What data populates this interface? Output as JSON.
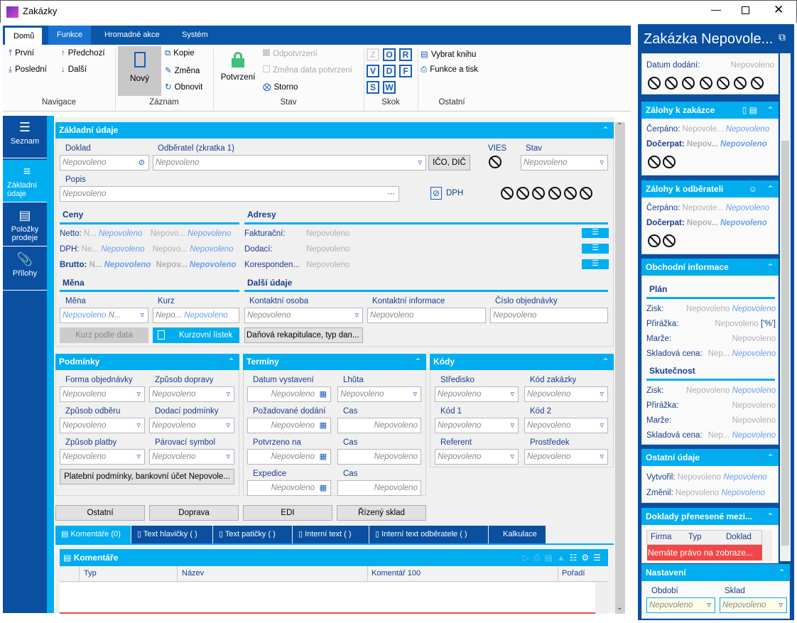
{
  "window": {
    "title": "Zakázky",
    "icon": "k2-logo-icon",
    "controls": [
      "minimize",
      "maximize",
      "close"
    ]
  },
  "ribbon": {
    "tabs": [
      "Domů",
      "Funkce",
      "Hromadné akce",
      "Systém"
    ],
    "active_tab": "Domů",
    "navigace": {
      "label": "Navigace",
      "first": "První",
      "prev": "Předchozí",
      "last": "Poslední",
      "next": "Další"
    },
    "zaznam": {
      "label": "Záznam",
      "new": "Nový",
      "copy": "Kopie",
      "change": "Změna",
      "refresh": "Obnovit"
    },
    "stav": {
      "label": "Stav",
      "confirm": "Potvrzení",
      "unconfirm": "Odpotvrzení",
      "change_date": "Změna data potvrzení",
      "storno": "Storno"
    },
    "skok": {
      "label": "Skok",
      "letters": [
        "Z",
        "O",
        "R",
        "V",
        "D",
        "F",
        "S",
        "W"
      ]
    },
    "ostatni": {
      "label": "Ostatní",
      "book": "Vybrat knihu",
      "print": "Funkce a tisk"
    }
  },
  "nav": [
    {
      "label": "Seznam"
    },
    {
      "label": "Základní údaje",
      "active": true
    },
    {
      "label": "Položky prodeje"
    },
    {
      "label": "Přílohy"
    }
  ],
  "zakladni": {
    "title": "Základní údaje",
    "doklad": {
      "label": "Doklad",
      "value": "Nepovoleno"
    },
    "odberatel": {
      "label": "Odběratel (zkratka 1)",
      "value": "Nepovoleno"
    },
    "ico_button": "IČO, DIČ",
    "vies": "VIES",
    "stav": {
      "label": "Stav",
      "value": "Nepovoleno"
    },
    "popis": {
      "label": "Popis",
      "value": "Nepovoleno"
    },
    "dph": "DPH",
    "ceny": {
      "title": "Ceny",
      "rows": [
        {
          "label": "Netto:",
          "a": "N...",
          "b": "Nepovoleno",
          "c": "Nepovo...",
          "d": "Nepovoleno"
        },
        {
          "label": "DPH:",
          "a": "Ne...",
          "b": "Nepovoleno",
          "c": "Nepovo...",
          "d": "Nepovoleno"
        },
        {
          "label": "Brutto:",
          "a": "N...",
          "b": "Nepovoleno",
          "c": "Nepov...",
          "d": "Nepovoleno"
        }
      ]
    },
    "adresy": {
      "title": "Adresy",
      "rows": [
        {
          "label": "Fakturační:",
          "value": "Nepovoleno"
        },
        {
          "label": "Dodací:",
          "value": "Nepovoleno"
        },
        {
          "label": "Koresponden...",
          "value": "Nepovoleno"
        }
      ]
    },
    "mena": {
      "title": "Měna",
      "mena_label": "Měna",
      "mena_value": "Nepovoleno",
      "mena_extra": "N...",
      "kurz_label": "Kurz",
      "kurz_a": "Nepo...",
      "kurz_b": "Nepovoleno",
      "kurz_podle_data": "Kurz podle data",
      "kurzovni_listek": "Kurzovní lístek"
    },
    "dalsi": {
      "title": "Další údaje",
      "kontaktni_osoba": {
        "label": "Kontaktní osoba",
        "value": "Nepovoleno"
      },
      "kontaktni_informace": {
        "label": "Kontaktní informace",
        "value": "Nepovoleno"
      },
      "cislo_objednavky": {
        "label": "Číslo objednávky",
        "value": "Nepovoleno"
      },
      "danova_button": "Daňová rekapitulace, typ dan..."
    }
  },
  "podminky": {
    "title": "Podmínky",
    "fields": [
      {
        "label": "Forma objednávky",
        "value": "Nepovoleno"
      },
      {
        "label": "Způsob dopravy",
        "value": "Nepovoleno"
      },
      {
        "label": "Způsob odběru",
        "value": "Nepovoleno"
      },
      {
        "label": "Dodací podmínky",
        "value": "Nepovoleno"
      },
      {
        "label": "Způsob platby",
        "value": "Nepovoleno"
      },
      {
        "label": "Párovací symbol",
        "value": "Nepovoleno"
      }
    ],
    "button": "Platební podmínky, bankovní účet Nepovole..."
  },
  "terminy": {
    "title": "Termíny",
    "fields": [
      {
        "label": "Datum vystavení",
        "value": "Nepovoleno"
      },
      {
        "label": "Lhůta",
        "value": "Nepovoleno"
      },
      {
        "label": "Požadované dodání",
        "value": "Nepovoleno"
      },
      {
        "label": "Čas",
        "value": "Nepovoleno"
      },
      {
        "label": "Potvrzeno na",
        "value": "Nepovoleno"
      },
      {
        "label": "Čas",
        "value": "Nepovoleno"
      },
      {
        "label": "Expedice",
        "value": "Nepovoleno"
      },
      {
        "label": "Čas",
        "value": "Nepovoleno"
      }
    ]
  },
  "kody": {
    "title": "Kódy",
    "fields": [
      {
        "label": "Středisko",
        "value": "Nepovoleno"
      },
      {
        "label": "Kód zakázky",
        "value": "Nepovoleno"
      },
      {
        "label": "Kód 1",
        "value": "Nepovoleno"
      },
      {
        "label": "Kód 2",
        "value": "Nepovoleno"
      },
      {
        "label": "Referent",
        "value": "Nepovoleno"
      },
      {
        "label": "Prostředek",
        "value": "Nepovoleno"
      }
    ]
  },
  "bottom_buttons": [
    "Ostatní",
    "Doprava",
    "EDI",
    "Řízený sklad"
  ],
  "bottom_tabs": [
    "Komentáře (0)",
    "Text hlavičky ( )",
    "Text patičky ( )",
    "Interní text ( )",
    "Interní text odběratele ( )",
    "Kalkulace"
  ],
  "komentare": {
    "title": "Komentáře",
    "columns": [
      "Typ",
      "Název",
      "Komentář 100",
      "Pořadí"
    ]
  },
  "right": {
    "title": "Zakázka Nepovole...",
    "datum_dodani": {
      "label": "Datum dodání:",
      "value": "Nepovoleno"
    },
    "zalohy_zakazka": {
      "title": "Zálohy k zakázce",
      "cerpano_label": "Čerpáno:",
      "cerpano_a": "Nepovole...",
      "cerpano_b": "Nepovoleno",
      "docerpat_label": "Dočerpat:",
      "docerpat_a": "Nepov...",
      "docerpat_b": "Nepovoleno"
    },
    "zalohy_odberatel": {
      "title": "Zálohy k odběrateli",
      "cerpano_label": "Čerpáno:",
      "cerpano_a": "Nepovole...",
      "cerpano_b": "Nepovoleno",
      "docerpat_label": "Dočerpat:",
      "docerpat_a": "Nepov...",
      "docerpat_b": "Nepovoleno"
    },
    "obchodni": {
      "title": "Obchodní informace",
      "plan": {
        "title": "Plán",
        "zisk": [
          "Zisk:",
          "Nepovoleno",
          "Nepovoleno"
        ],
        "prirazka": [
          "Přirážka:",
          "Nepovoleno",
          "['%']"
        ],
        "marze": [
          "Marže:",
          "Nepovoleno"
        ],
        "skladova": [
          "Skladová cena:",
          "Nep...",
          "Nepovoleno"
        ]
      },
      "skutecnost": {
        "title": "Skutečnost",
        "zisk": [
          "Zisk:",
          "Nepovoleno",
          "Nepovoleno"
        ],
        "prirazka": [
          "Přirážka:",
          "Nepovoleno"
        ],
        "marze": [
          "Marže:",
          "Nepovoleno"
        ],
        "skladova": [
          "Skladová cena:",
          "Nep...",
          "Nepovoleno"
        ]
      }
    },
    "ostatni": {
      "title": "Ostatní údaje",
      "vytvoril": [
        "Vytvořil:",
        "Nepovoleno",
        "Nepovoleno"
      ],
      "zmenil": [
        "Změnil:",
        "Nepovoleno",
        "Nepovoleno"
      ]
    },
    "doklady": {
      "title": "Doklady přenesené mezi...",
      "columns": [
        "Firma",
        "Typ",
        "Doklad"
      ],
      "error": "Nemáte právo na zobraze..."
    },
    "nastaveni": {
      "title": "Nastavení",
      "obdobi": {
        "label": "Období",
        "value": "Nepovoleno"
      },
      "sklad": {
        "label": "Sklad",
        "value": "Nepovoleno"
      }
    }
  },
  "colors": {
    "dark_blue": "#0a4fa0",
    "accent": "#00adef",
    "error": "#f04848",
    "confirm_lock": "#3cc07a"
  }
}
